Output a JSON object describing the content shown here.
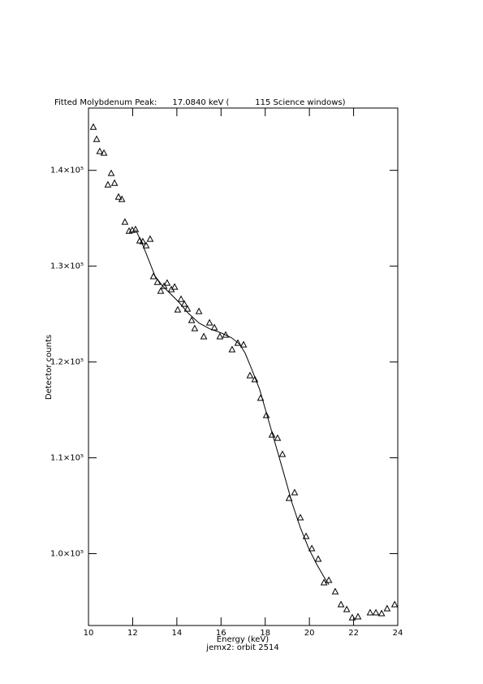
{
  "chart_data": {
    "type": "scatter",
    "title": "Fitted Molybdenum Peak:      17.0840 keV (          115 Science windows)",
    "x_label": "Energy (keV)",
    "subtitle": "jemx2: orbit 2514",
    "y_label": "Detector counts",
    "xlim": [
      10,
      24
    ],
    "xticks": [
      10,
      12,
      14,
      16,
      18,
      20,
      22,
      24
    ],
    "ylim": [
      92500,
      146500
    ],
    "yticks": [
      {
        "value": 100000,
        "label": "1.0×10⁵"
      },
      {
        "value": 110000,
        "label": "1.1×10⁵"
      },
      {
        "value": 120000,
        "label": "1.2×10⁵"
      },
      {
        "value": 130000,
        "label": "1.3×10⁵"
      },
      {
        "value": 140000,
        "label": "1.4×10⁵"
      }
    ],
    "color": "#000000",
    "series": [
      {
        "marker": "triangle",
        "x": [
          10.22,
          10.37,
          10.51,
          10.7,
          10.88,
          11.03,
          11.18,
          11.36,
          11.51,
          11.65,
          11.84,
          11.98,
          12.13,
          12.32,
          12.46,
          12.61,
          12.79,
          12.94,
          13.12,
          13.27,
          13.42,
          13.56,
          13.75,
          13.9,
          14.04,
          14.19,
          14.34,
          14.48,
          14.67,
          14.81,
          15.0,
          15.22,
          15.48,
          15.7,
          15.95,
          16.21,
          16.5,
          16.76,
          17.02,
          17.31,
          17.53,
          17.79,
          18.05,
          18.31,
          18.56,
          18.78,
          19.08,
          19.33,
          19.59,
          19.85,
          20.11,
          20.4,
          20.66,
          20.88,
          21.17,
          21.43,
          21.69,
          21.94,
          22.2,
          22.75,
          23.01,
          23.27,
          23.52,
          23.86
        ],
        "values": [
          144490,
          143220,
          141950,
          141780,
          138470,
          139660,
          138640,
          137200,
          136950,
          134580,
          133640,
          133730,
          133810,
          132630,
          132540,
          132120,
          132800,
          128900,
          128300,
          127370,
          127880,
          128220,
          127540,
          127800,
          125420,
          126530,
          126020,
          125510,
          124320,
          123470,
          125250,
          122630,
          124070,
          123560,
          122630,
          122800,
          121270,
          121950,
          121780,
          118560,
          118140,
          116200,
          114400,
          112370,
          112030,
          110340,
          105760,
          106350,
          103730,
          101780,
          100510,
          99410,
          96950,
          97200,
          96010,
          94660,
          94150,
          93300,
          93390,
          93810,
          93810,
          93730,
          94240,
          94660
        ]
      },
      {
        "marker": "line",
        "x": [
          12.13,
          12.43,
          12.72,
          13.01,
          13.34,
          13.71,
          14.08,
          14.52,
          15.0,
          15.48,
          15.99,
          16.47,
          16.84,
          17.09,
          17.39,
          17.75,
          18.12,
          18.49,
          18.86,
          19.22,
          19.59,
          19.96,
          20.33,
          20.69,
          20.88
        ],
        "values": [
          133810,
          132370,
          130680,
          128980,
          127970,
          127120,
          126270,
          125080,
          124070,
          123470,
          123050,
          122540,
          121860,
          120930,
          119240,
          117120,
          114150,
          111190,
          108220,
          105250,
          102710,
          100590,
          98890,
          97450,
          96770
        ]
      }
    ]
  }
}
